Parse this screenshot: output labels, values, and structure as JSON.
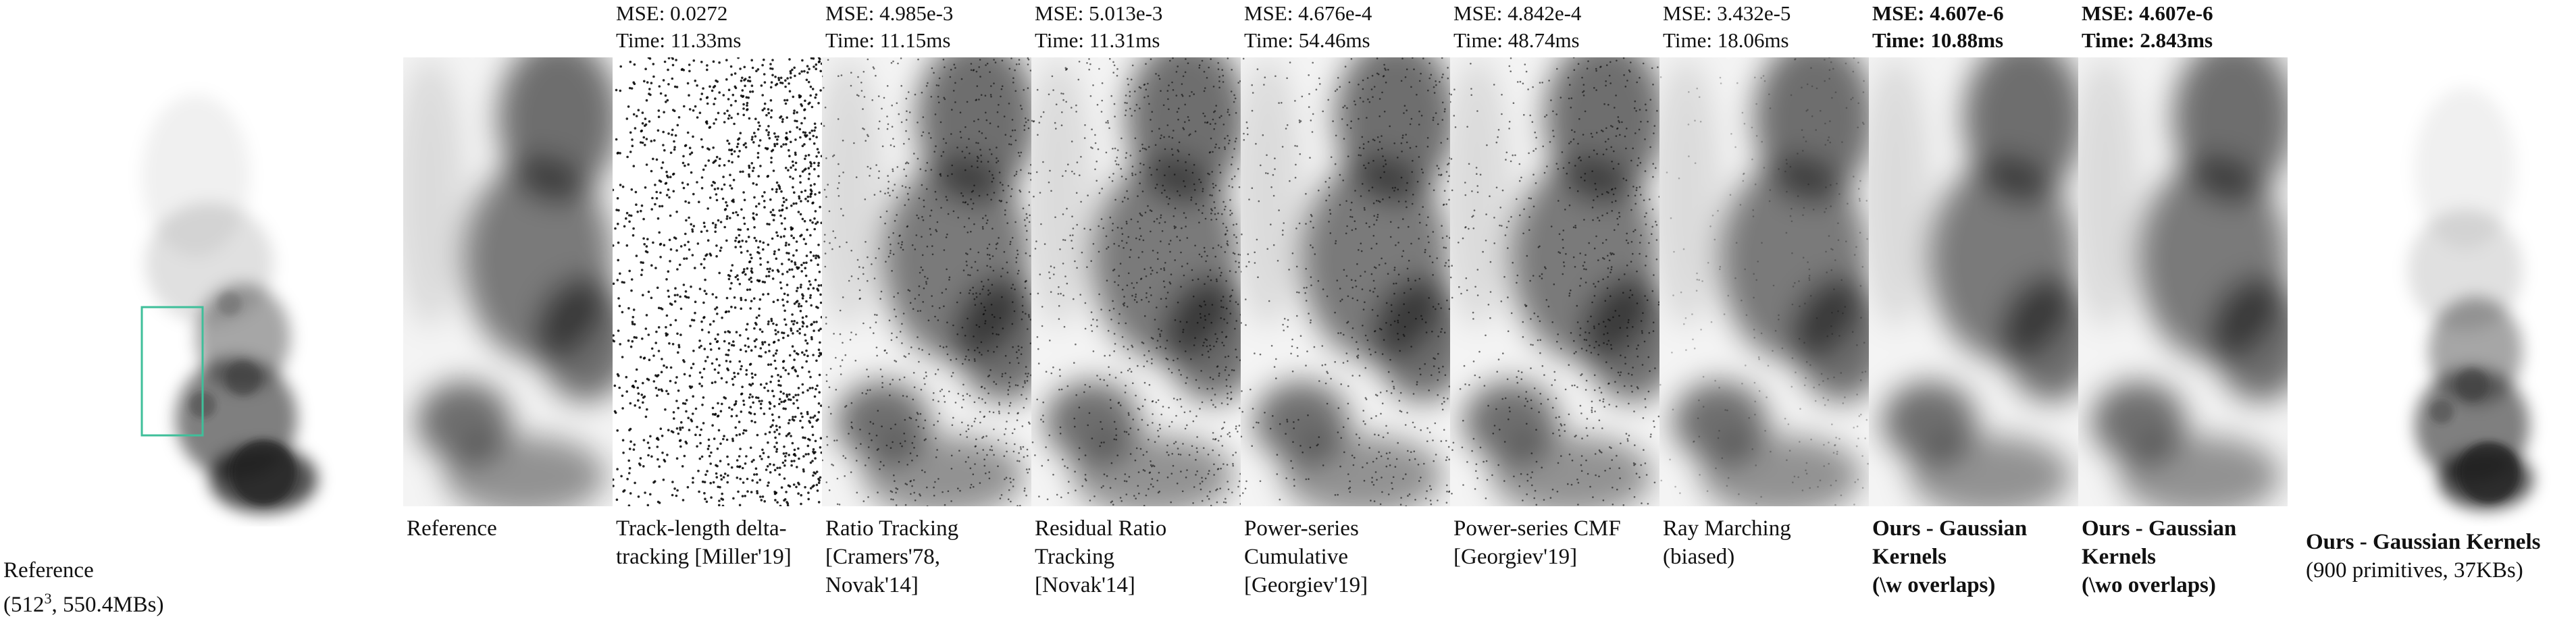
{
  "reference_caption": {
    "line1": "Reference",
    "line2_prefix": "(512",
    "line2_sup": "3",
    "line2_suffix": ", 550.4MBs)"
  },
  "ours_caption": {
    "title_a": "Ours - Gaussian ",
    "title_b": "Kernels",
    "sub": "(900 primitives, 37KBs)"
  },
  "panels": [
    {
      "mse": "",
      "time": "",
      "caption": [
        "Reference"
      ],
      "bold": false,
      "noise": "none"
    },
    {
      "mse": "MSE: 0.0272",
      "time": "Time: 11.33ms",
      "caption": [
        "Track-length delta-",
        "tracking [Miller'19]"
      ],
      "bold": false,
      "noise": "heavy"
    },
    {
      "mse": "MSE: 4.985e-3",
      "time": "Time: 11.15ms",
      "caption": [
        "Ratio Tracking",
        "[Cramers'78,",
        "Novak'14]"
      ],
      "bold": false,
      "noise": "medium"
    },
    {
      "mse": "MSE: 5.013e-3",
      "time": "Time: 11.31ms",
      "caption": [
        "Residual Ratio",
        "Tracking",
        "[Novak'14]"
      ],
      "bold": false,
      "noise": "medium"
    },
    {
      "mse": "MSE: 4.676e-4",
      "time": "Time: 54.46ms",
      "caption": [
        "Power-series",
        "Cumulative",
        "[Georgiev'19]"
      ],
      "bold": false,
      "noise": "light"
    },
    {
      "mse": "MSE: 4.842e-4",
      "time": "Time: 48.74ms",
      "caption": [
        "Power-series CMF",
        "[Georgiev'19]"
      ],
      "bold": false,
      "noise": "light"
    },
    {
      "mse": "MSE: 3.432e-5",
      "time": "Time: 18.06ms",
      "caption": [
        "Ray Marching",
        "(biased)"
      ],
      "bold": false,
      "noise": "faint"
    },
    {
      "mse": "MSE: 4.607e-6",
      "time": "Time: 10.88ms",
      "caption": [
        "Ours - Gaussian",
        "Kernels",
        "(\\w overlaps)"
      ],
      "bold": true,
      "noise": "none"
    },
    {
      "mse": "MSE: 4.607e-6",
      "time": "Time: 2.843ms",
      "caption": [
        "Ours - Gaussian",
        "Kernels",
        "(\\wo overlaps)"
      ],
      "bold": true,
      "noise": "none"
    }
  ],
  "colors": {
    "inset_box": "#3fbf9a",
    "smoke_dark": "#1a1a1a",
    "background": "#ffffff"
  }
}
